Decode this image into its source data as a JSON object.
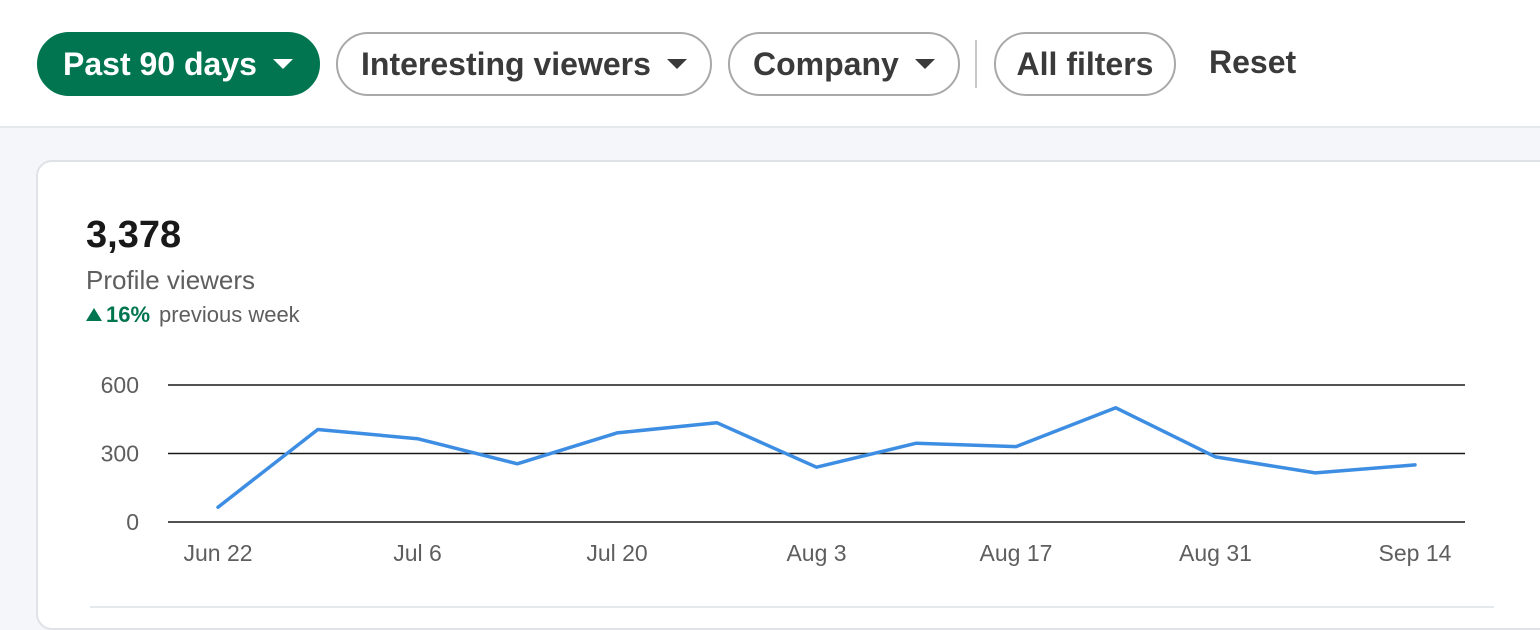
{
  "filters": {
    "time_range": "Past 90 days",
    "viewer_type": "Interesting viewers",
    "company": "Company",
    "all_filters": "All filters",
    "reset": "Reset"
  },
  "metric": {
    "value": "3,378",
    "label": "Profile viewers",
    "trend_value": "16%",
    "trend_label": "previous week",
    "trend_direction": "up"
  },
  "colors": {
    "accent": "#01754f",
    "line": "#3d8ee3",
    "gridline": "#191919"
  },
  "chart_data": {
    "type": "line",
    "ylim": [
      0,
      600
    ],
    "yticks": [
      "0",
      "300",
      "600"
    ],
    "xtick_labels": [
      "Jun 22",
      "Jul 6",
      "Jul 20",
      "Aug 3",
      "Aug 17",
      "Aug 31",
      "Sep 14"
    ],
    "x": [
      "Jun 22",
      "Jun 29",
      "Jul 6",
      "Jul 13",
      "Jul 20",
      "Jul 27",
      "Aug 3",
      "Aug 10",
      "Aug 17",
      "Aug 24",
      "Aug 31",
      "Sep 7",
      "Sep 14"
    ],
    "series": [
      {
        "values": [
          65,
          405,
          365,
          255,
          390,
          435,
          240,
          345,
          330,
          500,
          285,
          215,
          250
        ]
      }
    ]
  }
}
